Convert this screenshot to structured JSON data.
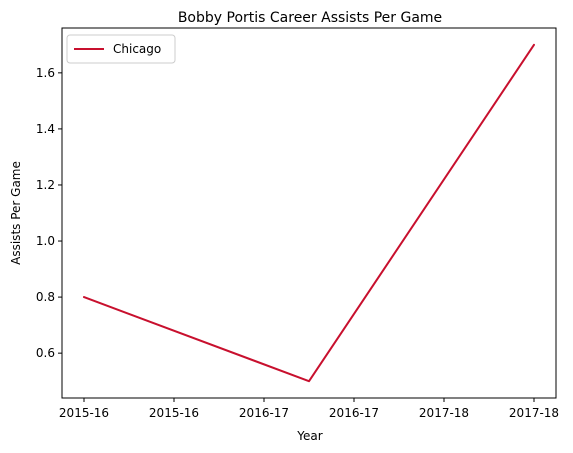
{
  "chart_data": {
    "type": "line",
    "title": "Bobby Portis Career Assists Per Game",
    "xlabel": "Year",
    "ylabel": "Assists Per Game",
    "x": [
      "2015-16",
      "2016-17",
      "2017-18"
    ],
    "x_tick_labels": [
      "2015-16",
      "2015-16",
      "2016-17",
      "2016-17",
      "2017-18",
      "2017-18"
    ],
    "y_ticks": [
      0.6,
      0.8,
      1.0,
      1.2,
      1.4,
      1.6
    ],
    "y_tick_labels": [
      "0.6",
      "0.8",
      "1.0",
      "1.2",
      "1.4",
      "1.6"
    ],
    "ylim": [
      0.44,
      1.76
    ],
    "grid": false,
    "legend_position": "top-left",
    "series": [
      {
        "name": "Chicago",
        "values": [
          0.8,
          0.5,
          1.7
        ],
        "color": "#c8102e"
      }
    ]
  }
}
